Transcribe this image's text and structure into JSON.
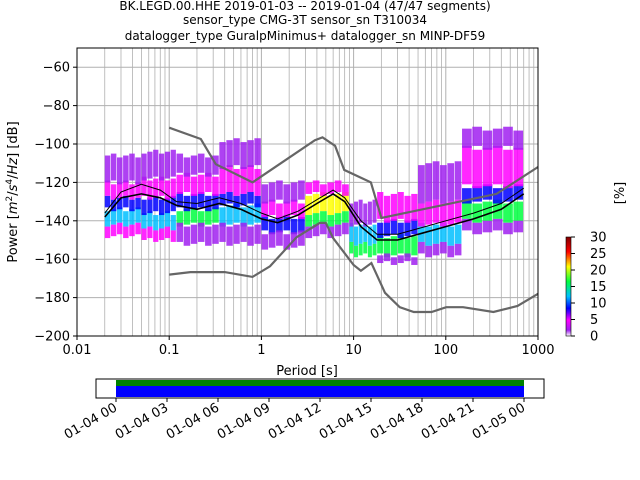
{
  "chart_data": {
    "type": "heatmap",
    "title_lines": [
      "BK.LEGD.00.HHE   2019-01-03 -- 2019-01-04  (47/47 segments)",
      "sensor_type CMG-3T sensor_sn T310034",
      "datalogger_type GuralpMinimus+ datalogger_sn MINP-DF59"
    ],
    "xlabel": "Period [s]",
    "ylabel_parts": [
      "Power [",
      "m",
      "2",
      "/",
      "s",
      "4",
      "/",
      "Hz",
      "] [dB]"
    ],
    "xscale": "log",
    "xlim": [
      0.01,
      1000
    ],
    "ylim": [
      -200,
      -50
    ],
    "xticks": [
      {
        "value": 0.01,
        "label": "0.01"
      },
      {
        "value": 0.1,
        "label": "0.1"
      },
      {
        "value": 1,
        "label": "1"
      },
      {
        "value": 10,
        "label": "10"
      },
      {
        "value": 100,
        "label": "100"
      },
      {
        "value": 1000,
        "label": "1000"
      }
    ],
    "yticks": [
      {
        "value": -60,
        "label": "−60"
      },
      {
        "value": -80,
        "label": "−80"
      },
      {
        "value": -100,
        "label": "−100"
      },
      {
        "value": -120,
        "label": "−120"
      },
      {
        "value": -140,
        "label": "−140"
      },
      {
        "value": -160,
        "label": "−160"
      },
      {
        "value": -180,
        "label": "−180"
      },
      {
        "value": -200,
        "label": "−200"
      }
    ],
    "grid": true,
    "colorbar": {
      "label": "[%]",
      "range": [
        0,
        30
      ],
      "ticks": [
        {
          "value": 0,
          "label": "0"
        },
        {
          "value": 5,
          "label": "5"
        },
        {
          "value": 10,
          "label": "10"
        },
        {
          "value": 15,
          "label": "15"
        },
        {
          "value": 20,
          "label": "20"
        },
        {
          "value": 25,
          "label": "25"
        },
        {
          "value": 30,
          "label": "30"
        }
      ],
      "colors": [
        "#ffffff",
        "#a020f0",
        "#ff00ff",
        "#0000ff",
        "#00c0ff",
        "#00ff40",
        "#ffff00",
        "#ff0000",
        "#800000"
      ]
    },
    "mean_curve": {
      "color": "#000000",
      "points": [
        [
          0.02,
          -138
        ],
        [
          0.03,
          -128
        ],
        [
          0.05,
          -126
        ],
        [
          0.08,
          -128
        ],
        [
          0.12,
          -132
        ],
        [
          0.2,
          -134
        ],
        [
          0.35,
          -131
        ],
        [
          0.6,
          -134
        ],
        [
          1,
          -139
        ],
        [
          1.5,
          -141
        ],
        [
          2.5,
          -137
        ],
        [
          4,
          -131
        ],
        [
          6,
          -126
        ],
        [
          8,
          -130
        ],
        [
          12,
          -143
        ],
        [
          18,
          -150
        ],
        [
          30,
          -150
        ],
        [
          60,
          -146
        ],
        [
          100,
          -143
        ],
        [
          200,
          -139
        ],
        [
          400,
          -134
        ],
        [
          700,
          -126
        ]
      ]
    },
    "upper_band": {
      "color": "#000000",
      "points": [
        [
          0.02,
          -136
        ],
        [
          0.03,
          -125
        ],
        [
          0.05,
          -121
        ],
        [
          0.08,
          -124
        ],
        [
          0.12,
          -130
        ],
        [
          0.2,
          -131
        ],
        [
          0.35,
          -128
        ],
        [
          0.6,
          -131
        ],
        [
          1,
          -136
        ],
        [
          1.5,
          -139
        ],
        [
          2.5,
          -135
        ],
        [
          4,
          -129
        ],
        [
          6,
          -124
        ],
        [
          8,
          -128
        ],
        [
          12,
          -140
        ],
        [
          18,
          -147
        ],
        [
          30,
          -147
        ],
        [
          60,
          -143
        ],
        [
          100,
          -140
        ],
        [
          200,
          -136
        ],
        [
          400,
          -131
        ],
        [
          700,
          -123
        ]
      ]
    },
    "noise_models": [
      {
        "name": "NHNM",
        "color": "#666666",
        "points": [
          [
            0.1,
            -91.5
          ],
          [
            0.22,
            -97.4
          ],
          [
            0.32,
            -110.5
          ],
          [
            0.8,
            -120
          ],
          [
            3.8,
            -98
          ],
          [
            4.6,
            -96.5
          ],
          [
            6.3,
            -101
          ],
          [
            7.9,
            -113.5
          ],
          [
            15.4,
            -120
          ],
          [
            20,
            -138.5
          ],
          [
            354.8,
            -126
          ],
          [
            1000,
            -112
          ]
        ]
      },
      {
        "name": "NLNM",
        "color": "#666666",
        "points": [
          [
            0.1,
            -168
          ],
          [
            0.17,
            -166.7
          ],
          [
            0.4,
            -166.7
          ],
          [
            0.8,
            -169.2
          ],
          [
            1.24,
            -163.7
          ],
          [
            2.4,
            -148.6
          ],
          [
            4.3,
            -141.1
          ],
          [
            5,
            -141.1
          ],
          [
            6,
            -149
          ],
          [
            10,
            -163
          ],
          [
            12,
            -166
          ],
          [
            15.6,
            -162
          ],
          [
            21.9,
            -177.5
          ],
          [
            31.6,
            -185
          ],
          [
            45,
            -187.5
          ],
          [
            70,
            -187.5
          ],
          [
            101,
            -185
          ],
          [
            154,
            -185
          ],
          [
            328,
            -187.5
          ],
          [
            600,
            -184.4
          ],
          [
            1000,
            -178
          ]
        ]
      }
    ],
    "density_bins": [
      {
        "x0": 0.02,
        "x1": 0.05,
        "cells": [
          [
            -140,
            -132,
            "#00c0ff"
          ],
          [
            -132,
            -126,
            "#0000ff"
          ],
          [
            -126,
            -118,
            "#ff00ff"
          ],
          [
            -118,
            -104,
            "#a020f0"
          ],
          [
            -146,
            -140,
            "#ff00ff"
          ]
        ]
      },
      {
        "x0": 0.05,
        "x1": 0.12,
        "cells": [
          [
            -142,
            -134,
            "#00c0ff"
          ],
          [
            -134,
            -126,
            "#0000ff"
          ],
          [
            -126,
            -116,
            "#ff00ff"
          ],
          [
            -116,
            -102,
            "#a020f0"
          ],
          [
            -148,
            -142,
            "#ff00ff"
          ]
        ]
      },
      {
        "x0": 0.12,
        "x1": 0.35,
        "cells": [
          [
            -140,
            -132,
            "#00ff40"
          ],
          [
            -132,
            -124,
            "#0000ff"
          ],
          [
            -124,
            -114,
            "#ff00ff"
          ],
          [
            -114,
            -104,
            "#a020f0"
          ],
          [
            -150,
            -140,
            "#a020f0"
          ]
        ]
      },
      {
        "x0": 0.35,
        "x1": 1.0,
        "cells": [
          [
            -140,
            -130,
            "#00c0ff"
          ],
          [
            -130,
            -124,
            "#0000ff"
          ],
          [
            -124,
            -110,
            "#ff00ff"
          ],
          [
            -110,
            -96,
            "#a020f0"
          ],
          [
            -150,
            -140,
            "#a020f0"
          ]
        ]
      },
      {
        "x0": 1.0,
        "x1": 3.0,
        "cells": [
          [
            -144,
            -136,
            "#0000ff"
          ],
          [
            -136,
            -128,
            "#ff00ff"
          ],
          [
            -128,
            -118,
            "#a020f0"
          ],
          [
            -152,
            -144,
            "#a020f0"
          ]
        ]
      },
      {
        "x0": 3.0,
        "x1": 9.0,
        "cells": [
          [
            -134,
            -124,
            "#ffff00"
          ],
          [
            -140,
            -134,
            "#00ff40"
          ],
          [
            -124,
            -118,
            "#ff00ff"
          ],
          [
            -146,
            -140,
            "#a020f0"
          ]
        ]
      },
      {
        "x0": 9.0,
        "x1": 18.0,
        "cells": [
          [
            -150,
            -140,
            "#00c0ff"
          ],
          [
            -156,
            -150,
            "#00ff40"
          ],
          [
            -140,
            -128,
            "#a020f0"
          ]
        ]
      },
      {
        "x0": 18.0,
        "x1": 50.0,
        "cells": [
          [
            -156,
            -146,
            "#00ff40"
          ],
          [
            -146,
            -138,
            "#0000ff"
          ],
          [
            -138,
            -124,
            "#ff00ff"
          ],
          [
            -160,
            -156,
            "#a020f0"
          ]
        ]
      },
      {
        "x0": 50.0,
        "x1": 150.0,
        "cells": [
          [
            -150,
            -140,
            "#00c0ff"
          ],
          [
            -140,
            -128,
            "#ff00ff"
          ],
          [
            -128,
            -108,
            "#a020f0"
          ],
          [
            -156,
            -150,
            "#a020f0"
          ]
        ]
      },
      {
        "x0": 150.0,
        "x1": 700.0,
        "cells": [
          [
            -138,
            -128,
            "#00ff40"
          ],
          [
            -128,
            -120,
            "#0000ff"
          ],
          [
            -120,
            -100,
            "#ff00ff"
          ],
          [
            -100,
            -90,
            "#a020f0"
          ],
          [
            -144,
            -138,
            "#a020f0"
          ]
        ]
      }
    ]
  },
  "coverage": {
    "tick_labels": [
      "01-04 00",
      "01-04 03",
      "01-04 06",
      "01-04 09",
      "01-04 12",
      "01-04 15",
      "01-04 18",
      "01-04 21",
      "01-05 00"
    ],
    "data_color": "#008000",
    "psd_color": "#0000ff"
  }
}
